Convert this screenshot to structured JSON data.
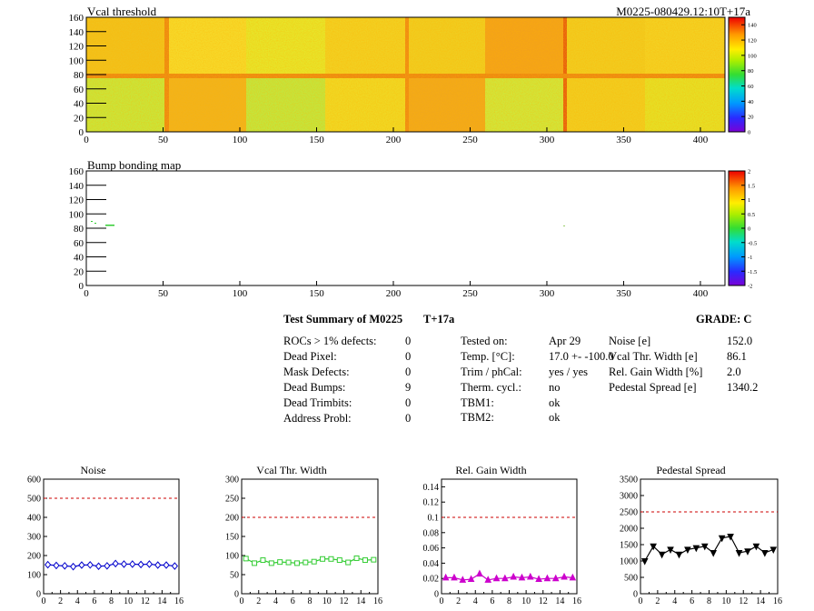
{
  "top_map": {
    "title": "Vcal threshold",
    "id_label": "M0225-080429.12:10T+17a",
    "xticks": [
      "0",
      "50",
      "100",
      "150",
      "200",
      "250",
      "300",
      "350",
      "400"
    ],
    "yticks": [
      "0",
      "20",
      "40",
      "60",
      "80",
      "100",
      "120",
      "140",
      "160"
    ],
    "colorbar_ticks": [
      "0",
      "20",
      "40",
      "60",
      "80",
      "100",
      "120",
      "140"
    ]
  },
  "bump_map": {
    "title": "Bump bonding map",
    "xticks": [
      "0",
      "50",
      "100",
      "150",
      "200",
      "250",
      "300",
      "350",
      "400"
    ],
    "yticks": [
      "0",
      "20",
      "40",
      "60",
      "80",
      "100",
      "120",
      "140",
      "160"
    ],
    "colorbar_ticks": [
      "-2",
      "-1.5",
      "-1",
      "-0.5",
      "0",
      "0.5",
      "1",
      "1.5",
      "2"
    ]
  },
  "summary": {
    "title": "Test Summary of M0225",
    "temp_tag": "T+17a",
    "grade": "GRADE:  C",
    "col1": [
      {
        "label": "ROCs > 1% defects:",
        "value": "0"
      },
      {
        "label": "Dead Pixel:",
        "value": "0"
      },
      {
        "label": "Mask Defects:",
        "value": "0"
      },
      {
        "label": "Dead Bumps:",
        "value": "9"
      },
      {
        "label": "Dead Trimbits:",
        "value": "0"
      },
      {
        "label": "Address Probl:",
        "value": "0"
      }
    ],
    "col2": [
      {
        "label": "Tested on:",
        "value": "Apr 29"
      },
      {
        "label": "Temp. [°C]:",
        "value": "17.0 +- -100.0"
      },
      {
        "label": "Trim / phCal:",
        "value": "yes / yes"
      },
      {
        "label": "Therm. cycl.:",
        "value": "no"
      },
      {
        "label": "TBM1:",
        "value": "ok"
      },
      {
        "label": "TBM2:",
        "value": "ok"
      }
    ],
    "col3": [
      {
        "label": "Noise [e]",
        "value": "152.0"
      },
      {
        "label": "Vcal Thr. Width [e]",
        "value": "86.1"
      },
      {
        "label": "Rel. Gain Width [%]",
        "value": "2.0"
      },
      {
        "label": "Pedestal Spread [e]",
        "value": "1340.2"
      }
    ]
  },
  "chart_data": [
    {
      "type": "line",
      "title": "Noise",
      "x": [
        0,
        1,
        2,
        3,
        4,
        5,
        6,
        7,
        8,
        9,
        10,
        11,
        12,
        13,
        14,
        15
      ],
      "values": [
        152,
        148,
        146,
        142,
        150,
        151,
        144,
        146,
        158,
        155,
        155,
        153,
        155,
        150,
        150,
        145
      ],
      "xlim": [
        0,
        16
      ],
      "ylim": [
        0,
        600
      ],
      "yticks": [
        "0",
        "100",
        "200",
        "300",
        "400",
        "500",
        "600"
      ],
      "xticks": [
        "0",
        "2",
        "4",
        "6",
        "8",
        "10",
        "12",
        "14",
        "16"
      ],
      "threshold": 500,
      "color": "#0000cc",
      "marker": "diamond"
    },
    {
      "type": "line",
      "title": "Vcal Thr. Width",
      "x": [
        0,
        1,
        2,
        3,
        4,
        5,
        6,
        7,
        8,
        9,
        10,
        11,
        12,
        13,
        14,
        15
      ],
      "values": [
        92,
        80,
        88,
        80,
        83,
        82,
        80,
        82,
        84,
        91,
        91,
        88,
        82,
        93,
        88,
        89
      ],
      "xlim": [
        0,
        16
      ],
      "ylim": [
        0,
        300
      ],
      "yticks": [
        "0",
        "50",
        "100",
        "150",
        "200",
        "250",
        "300"
      ],
      "xticks": [
        "0",
        "2",
        "4",
        "6",
        "8",
        "10",
        "12",
        "14",
        "16"
      ],
      "threshold": 200,
      "color": "#33cc33",
      "marker": "square"
    },
    {
      "type": "line",
      "title": "Rel. Gain Width",
      "x": [
        0,
        1,
        2,
        3,
        4,
        5,
        6,
        7,
        8,
        9,
        10,
        11,
        12,
        13,
        14,
        15
      ],
      "values": [
        0.021,
        0.021,
        0.018,
        0.019,
        0.026,
        0.018,
        0.02,
        0.02,
        0.022,
        0.021,
        0.022,
        0.019,
        0.02,
        0.02,
        0.022,
        0.021
      ],
      "xlim": [
        0,
        16
      ],
      "ylim": [
        0,
        0.15
      ],
      "yticks": [
        "0",
        "0.02",
        "0.04",
        "0.06",
        "0.08",
        "0.1",
        "0.12",
        "0.14"
      ],
      "xticks": [
        "0",
        "2",
        "4",
        "6",
        "8",
        "10",
        "12",
        "14",
        "16"
      ],
      "threshold": 0.1,
      "color": "#cc00cc",
      "marker": "triangle"
    },
    {
      "type": "line",
      "title": "Pedestal Spread",
      "x": [
        0,
        1,
        2,
        3,
        4,
        5,
        6,
        7,
        8,
        9,
        10,
        11,
        12,
        13,
        14,
        15
      ],
      "values": [
        1000,
        1450,
        1200,
        1350,
        1200,
        1350,
        1400,
        1450,
        1250,
        1700,
        1750,
        1250,
        1300,
        1450,
        1250,
        1350
      ],
      "xlim": [
        0,
        16
      ],
      "ylim": [
        0,
        3500
      ],
      "yticks": [
        "0",
        "500",
        "1000",
        "1500",
        "2000",
        "2500",
        "3000",
        "3500"
      ],
      "xticks": [
        "0",
        "2",
        "4",
        "6",
        "8",
        "10",
        "12",
        "14",
        "16"
      ],
      "threshold": 2500,
      "color": "#000000",
      "marker": "triangle-down"
    }
  ]
}
